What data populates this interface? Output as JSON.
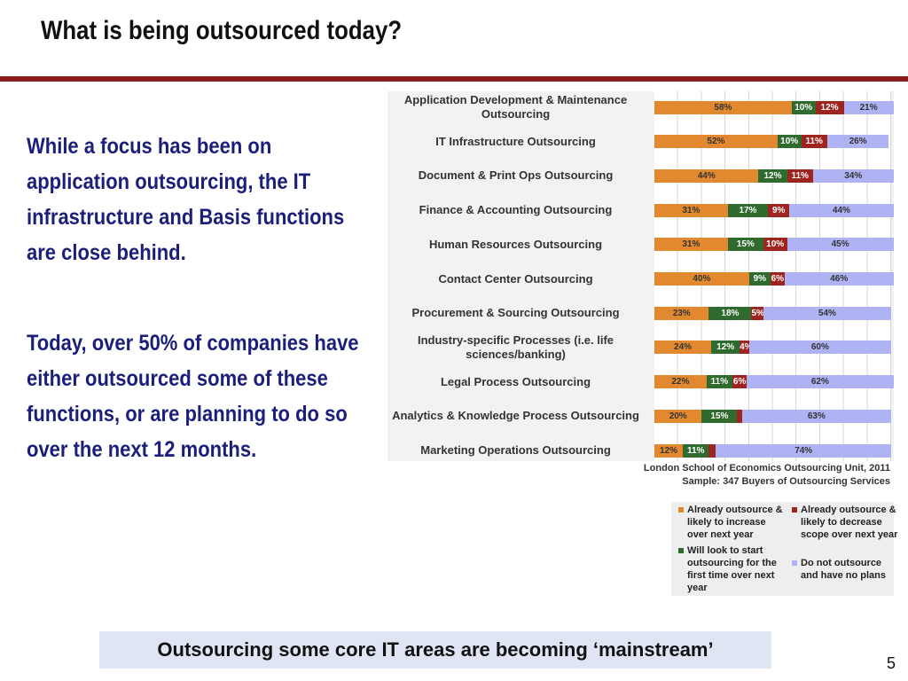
{
  "slide": {
    "title": "What is being outsourced today?",
    "paragraphs": [
      "While a focus has been on application outsourcing, the IT infrastructure and Basis functions are close behind.",
      "Today, over 50% of companies have either outsourced some of these functions, or are planning to do so over the next 12 months."
    ],
    "callout": "Outsourcing some core IT areas are becoming ‘mainstream’",
    "page_number": 5
  },
  "chart_data": {
    "type": "bar",
    "orientation": "horizontal",
    "stacked": true,
    "categories": [
      "Application Development & Maintenance Outsourcing",
      "IT Infrastructure Outsourcing",
      "Document & Print Ops Outsourcing",
      "Finance & Accounting Outsourcing",
      "Human Resources Outsourcing",
      "Contact Center Outsourcing",
      "Procurement & Sourcing Outsourcing",
      "Industry-specific Processes (i.e. life sciences/banking)",
      "Legal Process Outsourcing",
      "Analytics & Knowledge Process Outsourcing",
      "Marketing Operations Outsourcing"
    ],
    "series": [
      {
        "name": "Already outsource & likely to increase over next year",
        "color": "#e2892f",
        "values": [
          58,
          52,
          44,
          31,
          31,
          40,
          23,
          24,
          22,
          20,
          12
        ],
        "value_labels": [
          "58%",
          "52%",
          "44%",
          "31%",
          "31%",
          "40%",
          "23%",
          "24%",
          "22%",
          "20%",
          "12%"
        ]
      },
      {
        "name": "Will look to start outsourcing for the first time over next year",
        "color": "#2f6a2f",
        "values": [
          10,
          10,
          12,
          17,
          15,
          9,
          18,
          12,
          11,
          15,
          11
        ],
        "value_labels": [
          "10%",
          "10%",
          "12%",
          "17%",
          "15%",
          "9%",
          "18%",
          "12%",
          "11%",
          "15%",
          "11%"
        ]
      },
      {
        "name": "Already outsource & likely to decrease scope over next year",
        "color": "#9e2420",
        "values": [
          12,
          11,
          11,
          9,
          10,
          6,
          5,
          4,
          6,
          2,
          3
        ],
        "value_labels": [
          "12%",
          "11%",
          "11%",
          "9%",
          "10%",
          "6%",
          "5%",
          "4%",
          "6%",
          null,
          null
        ]
      },
      {
        "name": "Do not outsource and have no plans",
        "color": "#afb3f3",
        "values": [
          21,
          26,
          34,
          44,
          45,
          46,
          54,
          60,
          62,
          63,
          74
        ],
        "value_labels": [
          "21%",
          "26%",
          "34%",
          "44%",
          "45%",
          "46%",
          "54%",
          "60%",
          "62%",
          "63%",
          "74%"
        ]
      }
    ],
    "xlim": [
      0,
      100
    ],
    "source": [
      "London School of Economics Outsourcing Unit, 2011",
      "Sample: 347 Buyers of Outsourcing Services"
    ]
  }
}
